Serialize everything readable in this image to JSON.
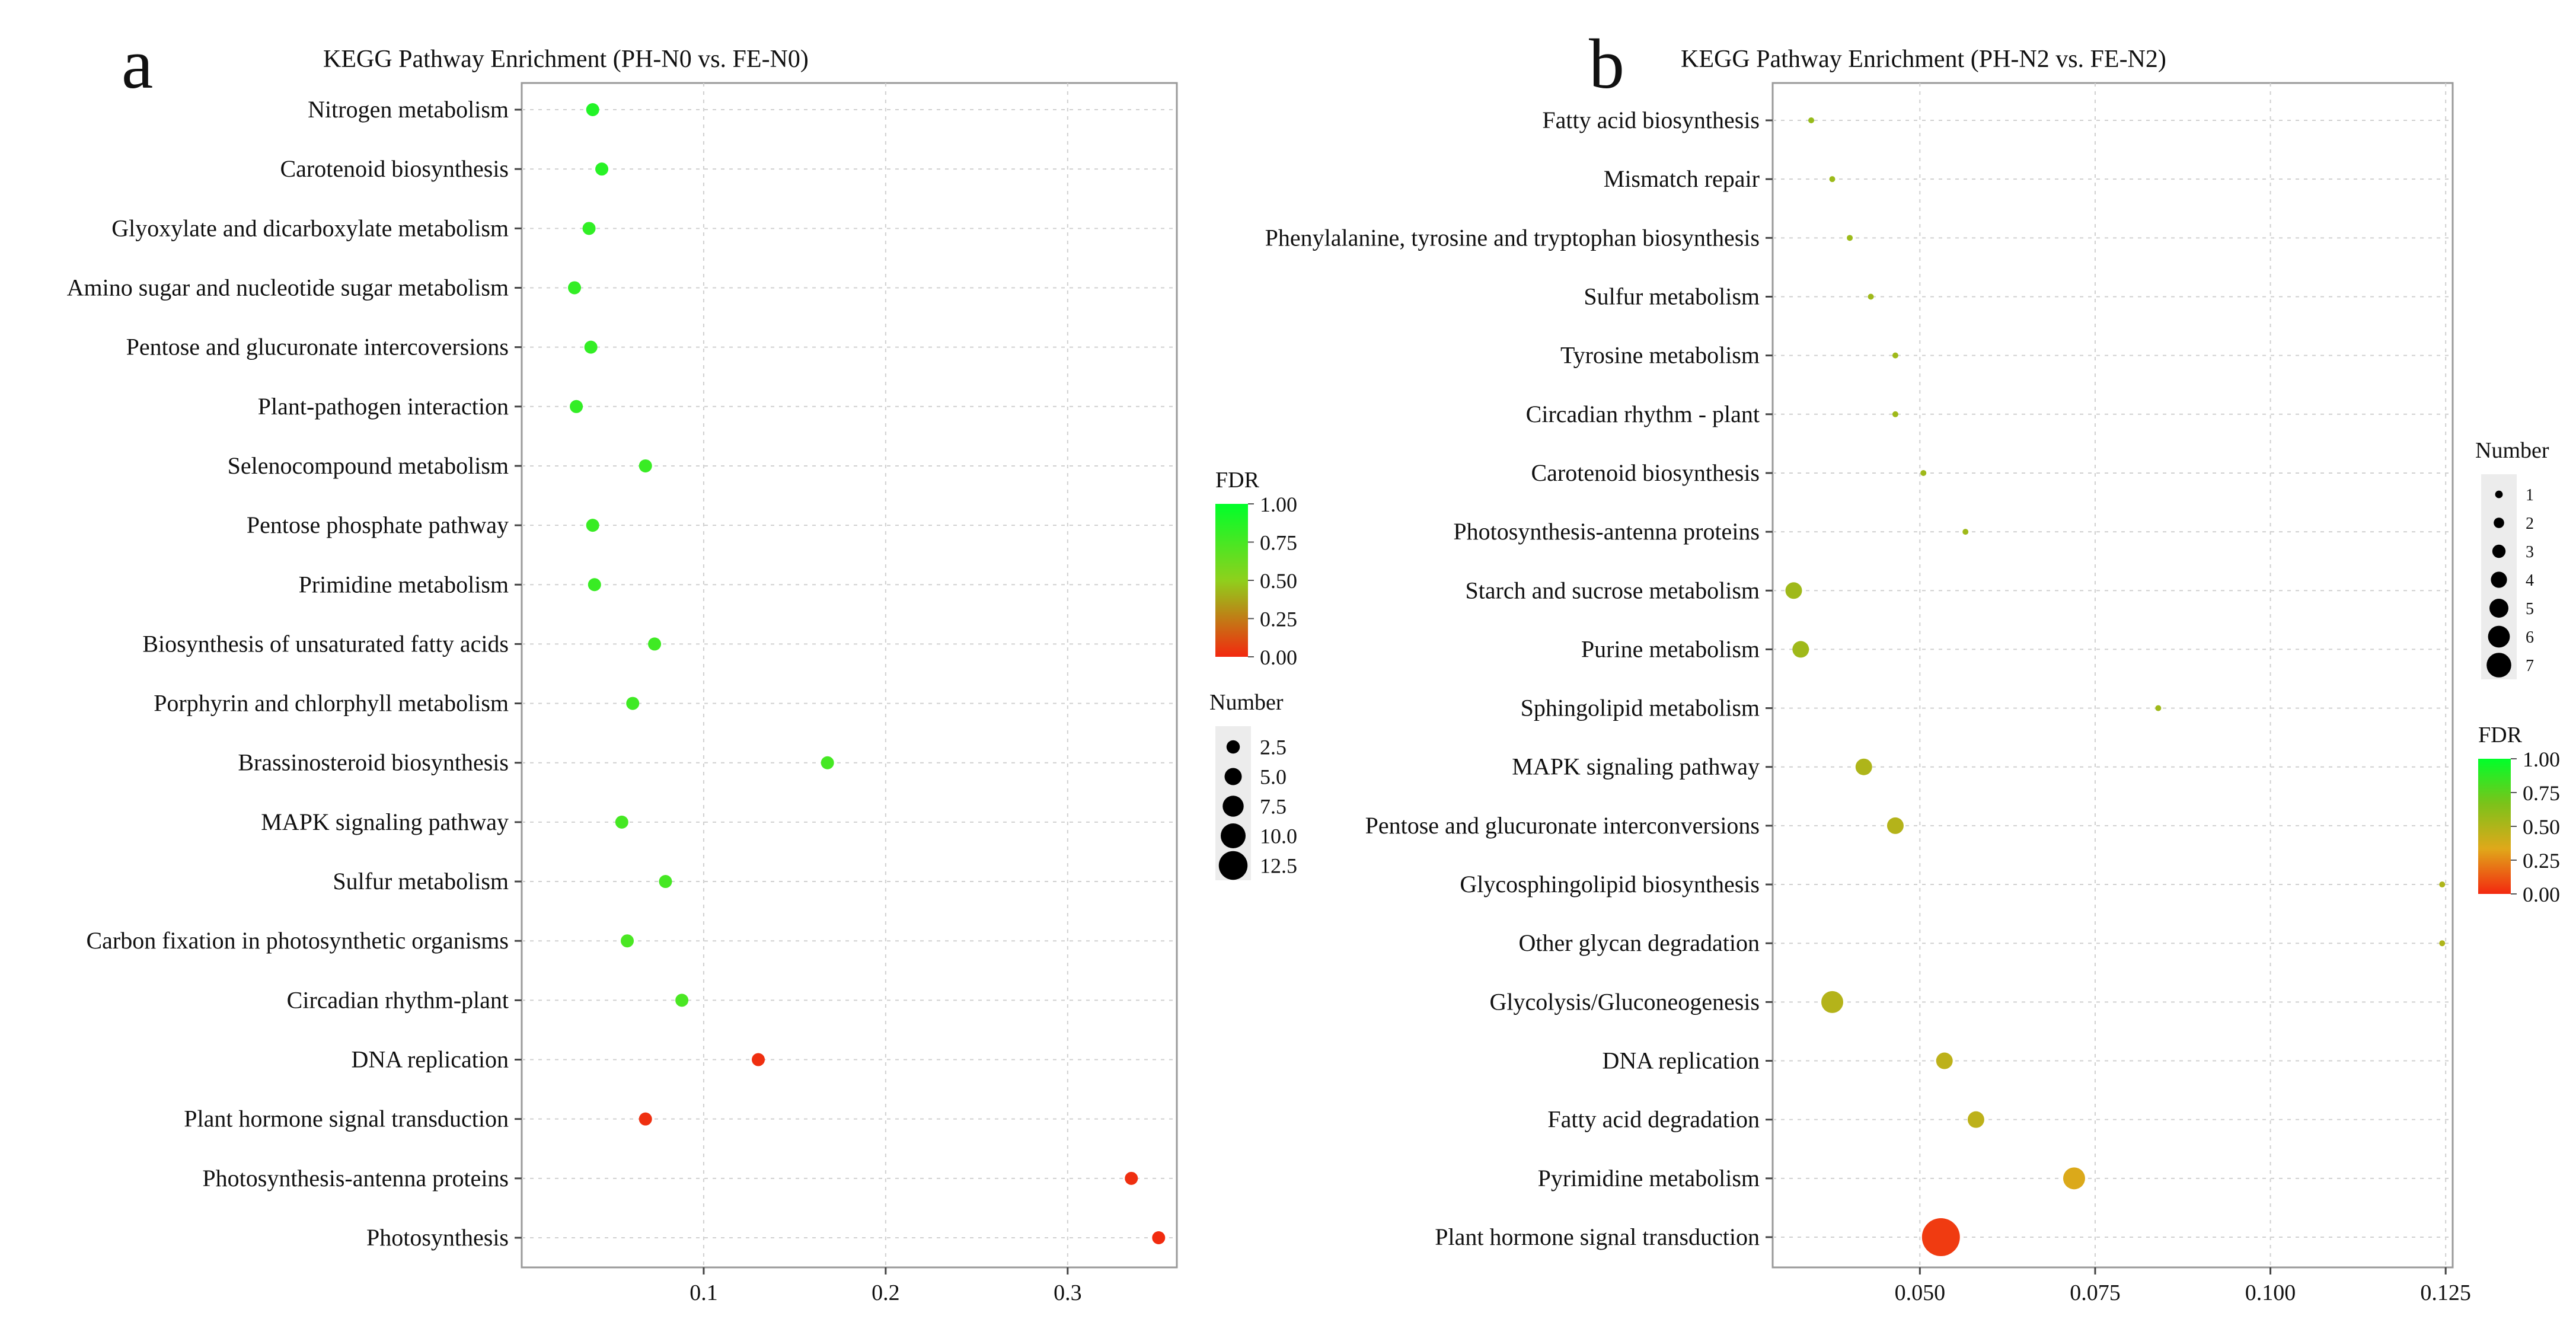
{
  "panels": [
    {
      "letter": "a",
      "title": "KEGG Pathway Enrichment (PH-N0 vs. FE-N0)"
    },
    {
      "letter": "b",
      "title": "KEGG Pathway Enrichment (PH-N2 vs. FE-N2)"
    }
  ],
  "chart_data": [
    {
      "type": "scatter",
      "title": "KEGG Pathway Enrichment (PH-N0 vs. FE-N0)",
      "xlabel": "",
      "ylabel": "",
      "xlim": [
        0.0,
        0.36
      ],
      "x_ticks": [
        0.1,
        0.2,
        0.3
      ],
      "x_tick_labels": [
        "0.1",
        "0.2",
        "0.3"
      ],
      "grid": true,
      "color_legend": {
        "title": "FDR",
        "ticks": [
          "1.00",
          "0.75",
          "0.50",
          "0.25",
          "0.00"
        ],
        "colors": [
          "#00ff2a",
          "#8fd01c",
          "#f3280f"
        ],
        "placement": "right"
      },
      "size_legend": {
        "title": "Number",
        "values": [
          "2.5",
          "5.0",
          "7.5",
          "10.0",
          "12.5"
        ],
        "placement": "right"
      },
      "points": [
        {
          "pathway": "Nitrogen metabolism",
          "x": 0.039,
          "fdr": 0.88,
          "number": 3
        },
        {
          "pathway": "Carotenoid biosynthesis",
          "x": 0.044,
          "fdr": 0.86,
          "number": 3
        },
        {
          "pathway": "Glyoxylate and dicarboxylate metabolism",
          "x": 0.037,
          "fdr": 0.83,
          "number": 3
        },
        {
          "pathway": "Amino sugar and nucleotide sugar metabolism",
          "x": 0.029,
          "fdr": 0.82,
          "number": 3
        },
        {
          "pathway": "Pentose and glucuronate intercoversions",
          "x": 0.038,
          "fdr": 0.82,
          "number": 3
        },
        {
          "pathway": "Plant-pathogen interaction",
          "x": 0.03,
          "fdr": 0.82,
          "number": 3
        },
        {
          "pathway": "Selenocompound metabolism",
          "x": 0.068,
          "fdr": 0.8,
          "number": 3
        },
        {
          "pathway": "Pentose phosphate pathway",
          "x": 0.039,
          "fdr": 0.8,
          "number": 3
        },
        {
          "pathway": "Primidine metabolism",
          "x": 0.04,
          "fdr": 0.8,
          "number": 3
        },
        {
          "pathway": "Biosynthesis of unsaturated fatty acids",
          "x": 0.073,
          "fdr": 0.78,
          "number": 3
        },
        {
          "pathway": "Porphyrin and chlorphyll metabolism",
          "x": 0.061,
          "fdr": 0.78,
          "number": 3
        },
        {
          "pathway": "Brassinosteroid biosynthesis",
          "x": 0.168,
          "fdr": 0.76,
          "number": 3
        },
        {
          "pathway": "MAPK signaling pathway",
          "x": 0.055,
          "fdr": 0.76,
          "number": 3
        },
        {
          "pathway": "Sulfur metabolism",
          "x": 0.079,
          "fdr": 0.76,
          "number": 3
        },
        {
          "pathway": "Carbon fixation in photosynthetic organisms",
          "x": 0.058,
          "fdr": 0.74,
          "number": 3
        },
        {
          "pathway": "Circadian rhythm-plant",
          "x": 0.088,
          "fdr": 0.74,
          "number": 3
        },
        {
          "pathway": "DNA replication",
          "x": 0.13,
          "fdr": 0.02,
          "number": 3
        },
        {
          "pathway": "Plant hormone signal transduction",
          "x": 0.068,
          "fdr": 0.02,
          "number": 3
        },
        {
          "pathway": "Photosynthesis-antenna proteins",
          "x": 0.335,
          "fdr": 0.02,
          "number": 3
        },
        {
          "pathway": "Photosynthesis",
          "x": 0.35,
          "fdr": 0.01,
          "number": 3
        }
      ]
    },
    {
      "type": "scatter",
      "title": "KEGG Pathway Enrichment (PH-N2 vs. FE-N2)",
      "xlabel": "",
      "ylabel": "",
      "xlim": [
        0.029,
        0.126
      ],
      "x_ticks": [
        0.05,
        0.075,
        0.1,
        0.125
      ],
      "x_tick_labels": [
        "0.050",
        "0.075",
        "0.100",
        "0.125"
      ],
      "grid": true,
      "size_legend": {
        "title": "Number",
        "values": [
          "1",
          "2",
          "3",
          "4",
          "5",
          "6",
          "7"
        ],
        "placement": "right"
      },
      "color_legend": {
        "title": "FDR",
        "ticks": [
          "1.00",
          "0.75",
          "0.50",
          "0.25",
          "0.00"
        ],
        "colors": [
          "#00ff2a",
          "#7cc21a",
          "#e0a81a",
          "#f3280f"
        ],
        "placement": "right"
      },
      "points": [
        {
          "pathway": "Fatty acid biosynthesis",
          "x": 0.0345,
          "fdr": 0.58,
          "number": 1
        },
        {
          "pathway": "Mismatch repair",
          "x": 0.0375,
          "fdr": 0.56,
          "number": 1
        },
        {
          "pathway": "Phenylalanine, tyrosine and tryptophan biosynthesis",
          "x": 0.04,
          "fdr": 0.56,
          "number": 1
        },
        {
          "pathway": "Sulfur metabolism",
          "x": 0.043,
          "fdr": 0.55,
          "number": 1
        },
        {
          "pathway": "Tyrosine metabolism",
          "x": 0.0465,
          "fdr": 0.55,
          "number": 1
        },
        {
          "pathway": "Circadian rhythm - plant",
          "x": 0.0465,
          "fdr": 0.55,
          "number": 1
        },
        {
          "pathway": "Carotenoid biosynthesis",
          "x": 0.0505,
          "fdr": 0.55,
          "number": 1
        },
        {
          "pathway": "Photosynthesis-antenna proteins",
          "x": 0.0565,
          "fdr": 0.55,
          "number": 1
        },
        {
          "pathway": "Starch and sucrose metabolism",
          "x": 0.032,
          "fdr": 0.55,
          "number": 3
        },
        {
          "pathway": "Purine metabolism",
          "x": 0.033,
          "fdr": 0.55,
          "number": 3
        },
        {
          "pathway": "Sphingolipid metabolism",
          "x": 0.084,
          "fdr": 0.55,
          "number": 1
        },
        {
          "pathway": "MAPK signaling pathway",
          "x": 0.042,
          "fdr": 0.5,
          "number": 3
        },
        {
          "pathway": "Pentose and glucuronate interconversions",
          "x": 0.0465,
          "fdr": 0.48,
          "number": 3
        },
        {
          "pathway": "Glycosphingolipid biosynthesis",
          "x": 0.1245,
          "fdr": 0.5,
          "number": 1
        },
        {
          "pathway": "Other glycan degradation",
          "x": 0.1245,
          "fdr": 0.5,
          "number": 1
        },
        {
          "pathway": "Glycolysis/Gluconeogenesis",
          "x": 0.0375,
          "fdr": 0.48,
          "number": 4
        },
        {
          "pathway": "DNA replication",
          "x": 0.0535,
          "fdr": 0.45,
          "number": 3
        },
        {
          "pathway": "Fatty acid degradation",
          "x": 0.058,
          "fdr": 0.45,
          "number": 3
        },
        {
          "pathway": "Pyrimidine metabolism",
          "x": 0.072,
          "fdr": 0.35,
          "number": 4
        },
        {
          "pathway": "Plant hormone signal transduction",
          "x": 0.053,
          "fdr": 0.05,
          "number": 7
        }
      ]
    }
  ]
}
